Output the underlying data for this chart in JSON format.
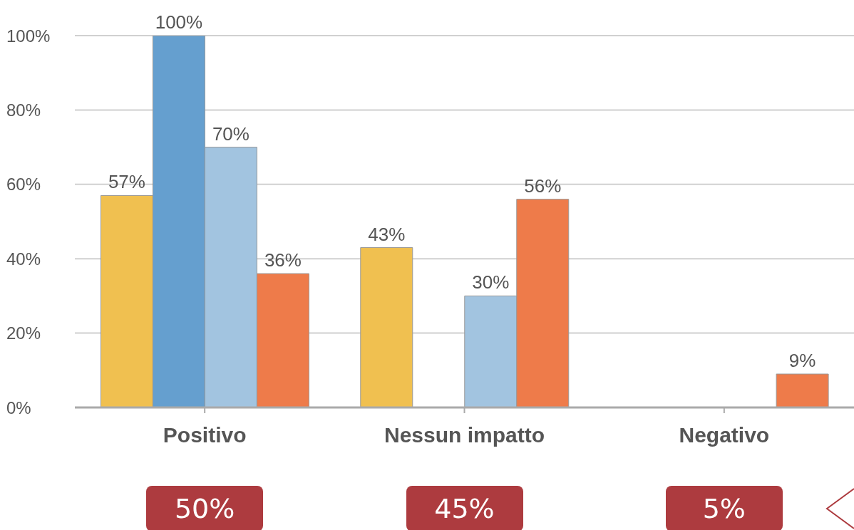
{
  "chart_data": {
    "type": "bar",
    "categories": [
      "Positivo",
      "Nessun impatto",
      "Negativo"
    ],
    "series": [
      {
        "color": "#f0c050",
        "values": [
          57,
          43,
          null
        ],
        "value_labels": [
          "57%",
          "43%",
          null
        ]
      },
      {
        "color": "#659fcf",
        "values": [
          100,
          null,
          null
        ],
        "value_labels": [
          "100%",
          null,
          null
        ]
      },
      {
        "color": "#a2c4e0",
        "values": [
          70,
          30,
          null
        ],
        "value_labels": [
          "70%",
          "30%",
          null
        ]
      },
      {
        "color": "#ee7b4a",
        "values": [
          36,
          56,
          9
        ],
        "value_labels": [
          "36%",
          "56%",
          "9%"
        ]
      }
    ],
    "ylim": [
      0,
      100
    ],
    "yticks": [
      {
        "value": 0,
        "label": "0%"
      },
      {
        "value": 20,
        "label": "20%"
      },
      {
        "value": 40,
        "label": "40%"
      },
      {
        "value": 60,
        "label": "60%"
      },
      {
        "value": 80,
        "label": "80%"
      },
      {
        "value": 100,
        "label": "100%"
      }
    ],
    "grid": "y",
    "legend": false,
    "annotations": [
      "50%",
      "45%",
      "5%"
    ]
  }
}
